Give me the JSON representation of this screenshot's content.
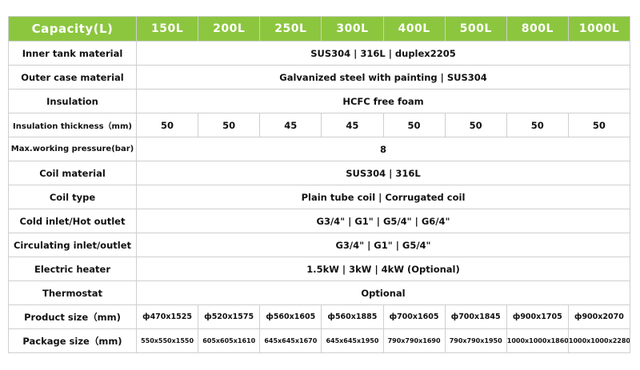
{
  "header": {
    "capacity_label": "Capacity(L)",
    "sizes": [
      "150L",
      "200L",
      "250L",
      "300L",
      "400L",
      "500L",
      "800L",
      "1000L"
    ]
  },
  "rows": {
    "inner_tank": {
      "label": "Inner tank material",
      "value": "SUS304 | 316L | duplex2205"
    },
    "outer_case": {
      "label": "Outer case material",
      "value": "Galvanized steel with painting | SUS304"
    },
    "insulation": {
      "label": "Insulation",
      "value": "HCFC free foam"
    },
    "insulation_thickness": {
      "label": "Insulation thickness（mm)",
      "values": [
        "50",
        "50",
        "45",
        "45",
        "50",
        "50",
        "50",
        "50"
      ]
    },
    "max_pressure": {
      "label": "Max.working pressure(bar)",
      "value": "8"
    },
    "coil_material": {
      "label": "Coil material",
      "value": "SUS304 | 316L"
    },
    "coil_type": {
      "label": "Coil type",
      "value": "Plain tube coil  |  Corrugated coil"
    },
    "cold_inlet": {
      "label": "Cold inlet/Hot outlet",
      "value": "G3/4\" | G1\" | G5/4\" | G6/4\""
    },
    "circulating": {
      "label": "Circulating inlet/outlet",
      "value": "G3/4\" | G1\" | G5/4\""
    },
    "heater": {
      "label": "Electric heater",
      "value": "1.5kW | 3kW | 4kW (Optional)"
    },
    "thermostat": {
      "label": "Thermostat",
      "value": "Optional"
    },
    "product_size": {
      "label": "Product size（mm)",
      "values": [
        "ф470x1525",
        "ф520x1575",
        "ф560x1605",
        "ф560x1885",
        "ф700x1605",
        "ф700x1845",
        "ф900x1705",
        "ф900x2070"
      ]
    },
    "package_size": {
      "label": "Package size（mm)",
      "values": [
        "550x550x1550",
        "605x605x1610",
        "645x645x1670",
        "645x645x1950",
        "790x790x1690",
        "790x790x1950",
        "1000x1000x1860",
        "1000x1000x2280"
      ]
    }
  },
  "colors": {
    "header_bg": "#8cc63f",
    "header_text": "#ffffff",
    "border": "#cfcfcf"
  }
}
